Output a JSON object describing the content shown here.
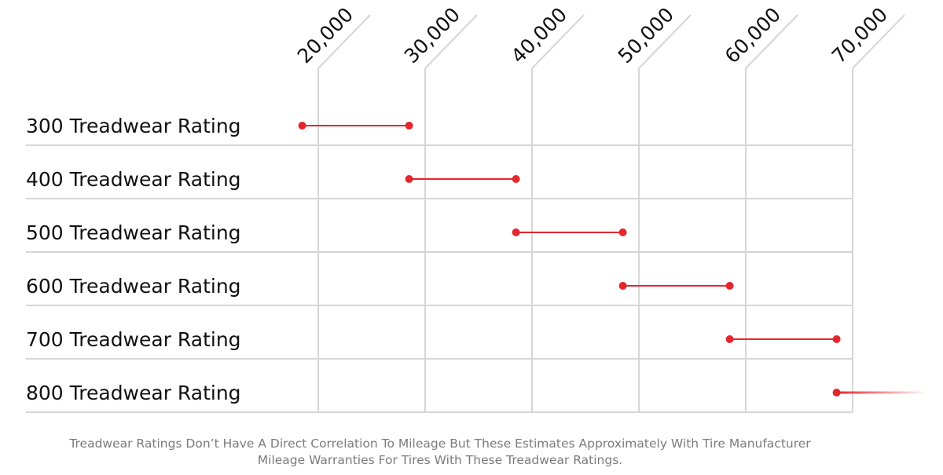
{
  "chart_data": {
    "type": "range",
    "x_ticks": [
      20000,
      30000,
      40000,
      50000,
      60000,
      70000
    ],
    "x_tick_labels": [
      "20,000",
      "30,000",
      "40,000",
      "50,000",
      "60,000",
      "70,000"
    ],
    "xlim": [
      17300,
      70000
    ],
    "categories": [
      "300 Treadwear Rating",
      "400 Treadwear Rating",
      "500 Treadwear Rating",
      "600 Treadwear Rating",
      "700 Treadwear Rating",
      "800 Treadwear Rating"
    ],
    "ranges": [
      {
        "start": 18500,
        "end": 28500
      },
      {
        "start": 28500,
        "end": 38500
      },
      {
        "start": 38500,
        "end": 48500
      },
      {
        "start": 48500,
        "end": 58500
      },
      {
        "start": 58500,
        "end": 68500
      },
      {
        "start": 68500,
        "end": null,
        "open_ended": true
      }
    ],
    "grid": true,
    "colors": {
      "range": "#e4262d",
      "grid": "#d6d6d6",
      "text": "#111111"
    }
  },
  "footnote": {
    "line1": "Treadwear Ratings Don’t Have A Direct Correlation To Mileage But These Estimates Approximately With Tire Manufacturer",
    "line2": "Mileage Warranties For Tires With These Treadwear Ratings."
  }
}
